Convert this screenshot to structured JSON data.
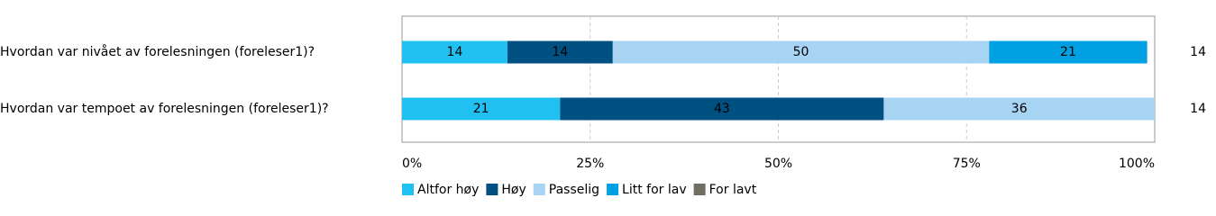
{
  "chart_data": {
    "type": "stacked-bar-horizontal",
    "categories": [
      "Hvordan var nivået av forelesningen (foreleser1)?",
      "Hvordan var tempoet av forelesningen (foreleser1)?"
    ],
    "counts": [
      14,
      14
    ],
    "series": [
      {
        "name": "Altfor høy",
        "color": "#20c0f0",
        "values": [
          14,
          21
        ]
      },
      {
        "name": "Høy",
        "color": "#005082",
        "values": [
          14,
          43
        ]
      },
      {
        "name": "Passelig",
        "color": "#a8d4f4",
        "values": [
          50,
          36
        ]
      },
      {
        "name": "Litt for lav",
        "color": "#00a0e2",
        "values": [
          21,
          0
        ]
      },
      {
        "name": "For lavt",
        "color": "#6e6e62",
        "values": [
          0,
          0
        ]
      }
    ],
    "xlim": [
      0,
      100
    ],
    "xticks": [
      {
        "value": 0,
        "label": "0%"
      },
      {
        "value": 25,
        "label": "25%"
      },
      {
        "value": 50,
        "label": "50%"
      },
      {
        "value": 75,
        "label": "75%"
      },
      {
        "value": 100,
        "label": "100%"
      }
    ],
    "grid": true
  }
}
